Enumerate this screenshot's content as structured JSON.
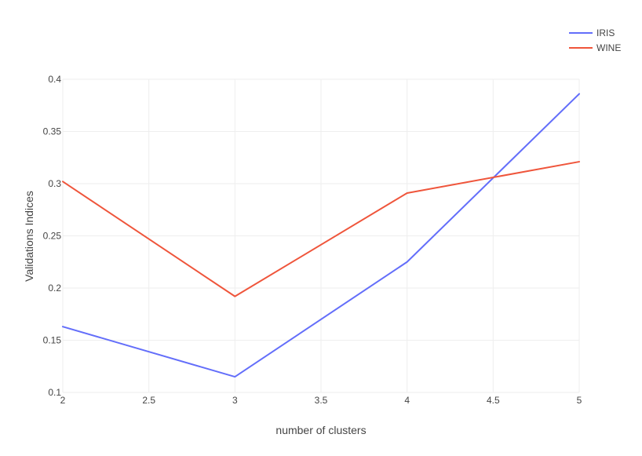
{
  "chart_data": {
    "type": "line",
    "xlabel": "number of clusters",
    "ylabel": "Validations Indices",
    "xlim": [
      2,
      5
    ],
    "ylim": [
      0.1,
      0.4
    ],
    "x_ticks": [
      2,
      2.5,
      3,
      3.5,
      4,
      4.5,
      5
    ],
    "x_tick_labels": [
      "2",
      "2.5",
      "3",
      "3.5",
      "4",
      "4.5",
      "5"
    ],
    "y_ticks": [
      0.1,
      0.15,
      0.2,
      0.25,
      0.3,
      0.35,
      0.4
    ],
    "y_tick_labels": [
      "0.1",
      "0.15",
      "0.2",
      "0.25",
      "0.3",
      "0.35",
      "0.4"
    ],
    "grid": true,
    "legend_position": "top-right",
    "series": [
      {
        "name": "IRIS",
        "color": "#636efa",
        "x": [
          2,
          3,
          4,
          5
        ],
        "y": [
          0.163,
          0.115,
          0.225,
          0.386
        ]
      },
      {
        "name": "WINE",
        "color": "#ef553b",
        "x": [
          2,
          3,
          4,
          5
        ],
        "y": [
          0.302,
          0.192,
          0.291,
          0.321
        ]
      }
    ]
  }
}
